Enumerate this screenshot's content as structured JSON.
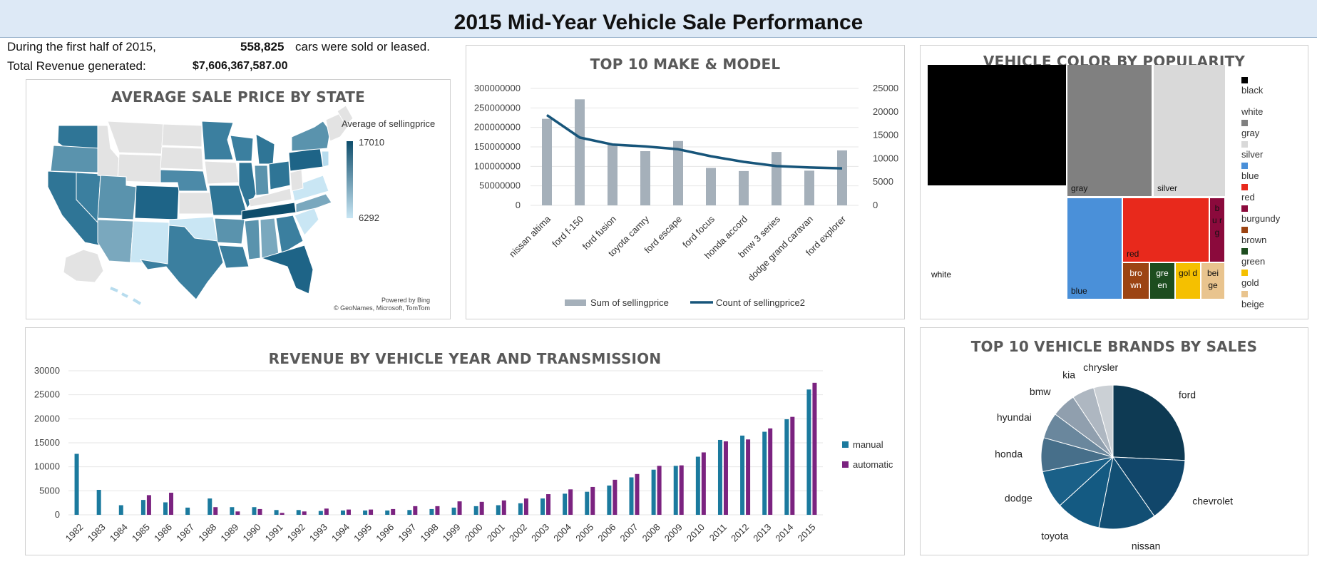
{
  "dashboard": {
    "title": "2015 Mid-Year Vehicle Sale Performance",
    "summary": {
      "line1_prefix": "During the first half of 2015,",
      "cars_count": "558,825",
      "line1_suffix": "cars were sold or leased.",
      "line2_label": "Total Revenue generated:",
      "revenue": "$7,606,367,587.00"
    }
  },
  "map_panel": {
    "title": "AVERAGE SALE PRICE BY STATE",
    "legend_title": "Average of sellingprice",
    "legend_max": "17010",
    "legend_min": "6292",
    "attribution_1": "Powered by Bing",
    "attribution_2": "© GeoNames, Microsoft, TomTom",
    "colors": {
      "high": "#0e4d6b",
      "low": "#c9e6f4",
      "nodata": "#e3e3e3"
    }
  },
  "chart_data": [
    {
      "id": "top10-make-model",
      "type": "bar",
      "title": "TOP 10 MAKE & MODEL",
      "categories": [
        "nissan altima",
        "ford f-150",
        "ford fusion",
        "toyota camry",
        "ford escape",
        "ford focus",
        "honda accord",
        "bmw 3 series",
        "dodge grand caravan",
        "ford explorer"
      ],
      "series": [
        {
          "name": "Sum of sellingprice",
          "type": "bar",
          "axis": "left",
          "color": "#a5b0ba",
          "values": [
            222000000,
            272000000,
            155000000,
            139000000,
            165000000,
            96000000,
            88000000,
            137000000,
            89000000,
            141000000
          ]
        },
        {
          "name": "Count of sellingprice2",
          "type": "line",
          "axis": "right",
          "color": "#17557a",
          "values": [
            19300,
            14500,
            13000,
            12600,
            12000,
            10500,
            9300,
            8400,
            8100,
            7900
          ]
        }
      ],
      "ylim_left": [
        0,
        300000000
      ],
      "yticks_left": [
        "0",
        "50000000",
        "100000000",
        "150000000",
        "200000000",
        "250000000",
        "300000000"
      ],
      "ylim_right": [
        0,
        25000
      ],
      "yticks_right": [
        "0",
        "5000",
        "10000",
        "15000",
        "20000",
        "25000"
      ]
    },
    {
      "id": "vehicle-color",
      "type": "treemap",
      "title": "VEHICLE COLOR BY POPULARITY",
      "items": [
        {
          "name": "black",
          "label": "",
          "color": "#000000"
        },
        {
          "name": "white",
          "label": "white",
          "color": "#ffffff"
        },
        {
          "name": "gray",
          "label": "gray",
          "color": "#808080"
        },
        {
          "name": "silver",
          "label": "silver",
          "color": "#d9d9d9"
        },
        {
          "name": "blue",
          "label": "blue",
          "color": "#4a90d9"
        },
        {
          "name": "red",
          "label": "red",
          "color": "#e8291c"
        },
        {
          "name": "burgundy",
          "label": "b u r g",
          "color": "#8b0a3c"
        },
        {
          "name": "brown",
          "label": "bro wn",
          "color": "#9c4413"
        },
        {
          "name": "green",
          "label": "gre en",
          "color": "#1d4d1f"
        },
        {
          "name": "gold",
          "label": "gol d",
          "color": "#f5c000"
        },
        {
          "name": "beige",
          "label": "bei ge",
          "color": "#e9c48e"
        }
      ]
    },
    {
      "id": "revenue-year-transmission",
      "type": "bar",
      "title": "REVENUE BY VEHICLE YEAR AND TRANSMISSION",
      "categories": [
        "1982",
        "1983",
        "1984",
        "1985",
        "1986",
        "1987",
        "1988",
        "1989",
        "1990",
        "1991",
        "1992",
        "1993",
        "1994",
        "1995",
        "1996",
        "1997",
        "1998",
        "1999",
        "2000",
        "2001",
        "2002",
        "2003",
        "2004",
        "2005",
        "2006",
        "2007",
        "2008",
        "2009",
        "2010",
        "2011",
        "2012",
        "2013",
        "2014",
        "2015"
      ],
      "series": [
        {
          "name": "manual",
          "color": "#1b7a9e",
          "values": [
            12700,
            5200,
            2000,
            3100,
            2600,
            1500,
            3400,
            1600,
            1600,
            1000,
            1000,
            800,
            900,
            900,
            900,
            1000,
            1200,
            1500,
            1800,
            2000,
            2400,
            3400,
            4400,
            4800,
            6100,
            7800,
            9400,
            10200,
            12100,
            15600,
            16500,
            17300,
            19900,
            26100
          ]
        },
        {
          "name": "automatic",
          "color": "#7b2380",
          "values": [
            0,
            0,
            0,
            4100,
            4600,
            0,
            1600,
            700,
            1200,
            400,
            700,
            1300,
            1100,
            1100,
            1200,
            1800,
            1800,
            2800,
            2700,
            3000,
            3400,
            4300,
            5300,
            5800,
            7300,
            8500,
            10200,
            10300,
            13000,
            15300,
            15700,
            18000,
            20400,
            27500
          ]
        }
      ],
      "ylim": [
        0,
        30000
      ],
      "yticks": [
        "0",
        "5000",
        "10000",
        "15000",
        "20000",
        "25000",
        "30000"
      ]
    },
    {
      "id": "top10-brands",
      "type": "pie",
      "title": "TOP 10 VEHICLE BRANDS BY SALES",
      "slices": [
        {
          "label": "ford",
          "value": 24.8,
          "color": "#0e3a53"
        },
        {
          "label": "chevrolet",
          "value": 14.0,
          "color": "#11466a"
        },
        {
          "label": "nissan",
          "value": 12.4,
          "color": "#124f74"
        },
        {
          "label": "toyota",
          "value": 9.7,
          "color": "#145a82"
        },
        {
          "label": "dodge",
          "value": 8.2,
          "color": "#1a6088"
        },
        {
          "label": "honda",
          "value": 7.3,
          "color": "#476f8a"
        },
        {
          "label": "hyundai",
          "value": 5.6,
          "color": "#6a879d"
        },
        {
          "label": "bmw",
          "value": 5.3,
          "color": "#909fae"
        },
        {
          "label": "kia",
          "value": 4.8,
          "color": "#aeb7c1"
        },
        {
          "label": "chrysler",
          "value": 4.2,
          "color": "#cbd0d5"
        }
      ]
    }
  ]
}
